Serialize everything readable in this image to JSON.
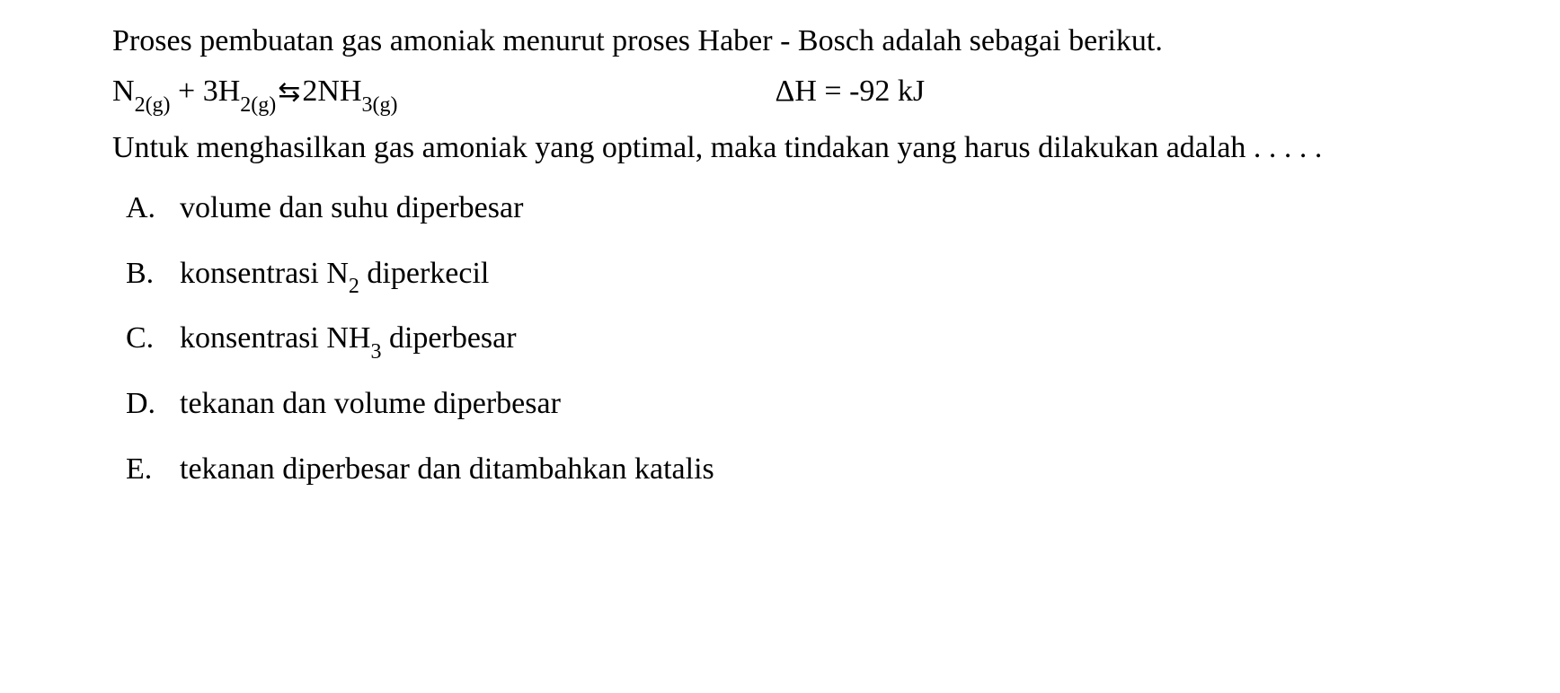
{
  "text_color": "#000000",
  "background_color": "#ffffff",
  "font_family": "Times New Roman",
  "base_fontsize": 34,
  "sub_fontsize": 24,
  "intro": {
    "text": "Proses pembuatan gas amoniak menurut proses Haber - Bosch adalah sebagai berikut."
  },
  "equation": {
    "reactant1_base": "N",
    "reactant1_sub": "2(g)",
    "plus": " + ",
    "reactant2_coef": "3",
    "reactant2_base": "H",
    "reactant2_sub": "2(g)",
    "equilibrium_symbol": "⇆",
    "product_coef": "2",
    "product_base": "NH",
    "product_sub": "3(g)",
    "delta_h_label": "ΔH = ",
    "delta_h_value": "-92 kJ"
  },
  "question": {
    "text": "Untuk menghasilkan gas amoniak yang optimal, maka tindakan yang harus dilakukan adalah . . . . ."
  },
  "options": [
    {
      "letter": "A.",
      "text_pre": "volume dan suhu diperbesar",
      "sub1": "",
      "text_mid": "",
      "sub2": "",
      "text_post": ""
    },
    {
      "letter": "B.",
      "text_pre": "konsentrasi N",
      "sub1": "2",
      "text_mid": " diperkecil",
      "sub2": "",
      "text_post": ""
    },
    {
      "letter": "C.",
      "text_pre": "konsentrasi NH",
      "sub1": "3",
      "text_mid": " diperbesar",
      "sub2": "",
      "text_post": ""
    },
    {
      "letter": "D.",
      "text_pre": "tekanan dan volume diperbesar",
      "sub1": "",
      "text_mid": "",
      "sub2": "",
      "text_post": ""
    },
    {
      "letter": "E.",
      "text_pre": "tekanan diperbesar dan ditambahkan katalis",
      "sub1": "",
      "text_mid": "",
      "sub2": "",
      "text_post": ""
    }
  ]
}
